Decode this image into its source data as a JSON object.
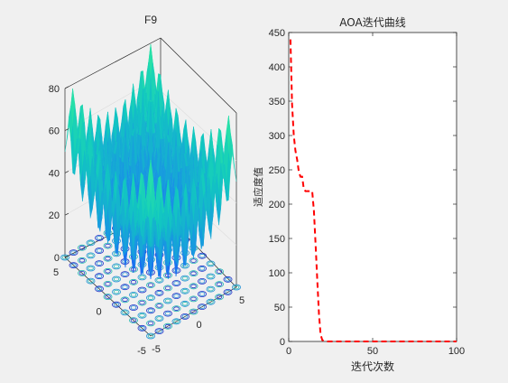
{
  "figure": {
    "background": "#f0f0f0",
    "left_plot": {
      "title": "F9",
      "z_ticks": [
        "0",
        "20",
        "40",
        "60",
        "80"
      ],
      "x_ticks": [
        "-5",
        "0",
        "5"
      ],
      "y_ticks": [
        "-5",
        "0",
        "5"
      ],
      "surface_colormap": [
        "#1e3cff",
        "#1a90e6",
        "#12c8c0",
        "#2ee8a0"
      ],
      "contour_colors": [
        "#2030c8",
        "#1f8fd6",
        "#21b8b0"
      ]
    },
    "right_plot": {
      "chart_data": {
        "type": "line",
        "title": "AOA迭代曲线",
        "xlabel": "迭代次数",
        "ylabel": "适应度值",
        "xlim": [
          0,
          100
        ],
        "ylim": [
          0,
          450
        ],
        "x_ticks": [
          0,
          50,
          100
        ],
        "y_ticks": [
          0,
          50,
          100,
          150,
          200,
          250,
          300,
          350,
          400,
          450
        ],
        "grid": false,
        "series": [
          {
            "style": "dashed",
            "color": "#ff0000",
            "x": [
              1,
              2,
              3,
              4,
              5,
              6,
              7,
              8,
              9,
              10,
              11,
              12,
              13,
              14,
              15,
              16,
              17,
              18,
              19,
              20,
              21,
              22,
              23,
              25,
              30,
              40,
              50,
              60,
              70,
              80,
              90,
              100
            ],
            "values": [
              440,
              345,
              300,
              278,
              265,
              247,
              240,
              240,
              222,
              219,
              219,
              219,
              219,
              219,
              190,
              140,
              90,
              40,
              10,
              2,
              0.5,
              0.2,
              0,
              0,
              0,
              0,
              0,
              0,
              0,
              0,
              0,
              0
            ]
          }
        ]
      }
    }
  }
}
